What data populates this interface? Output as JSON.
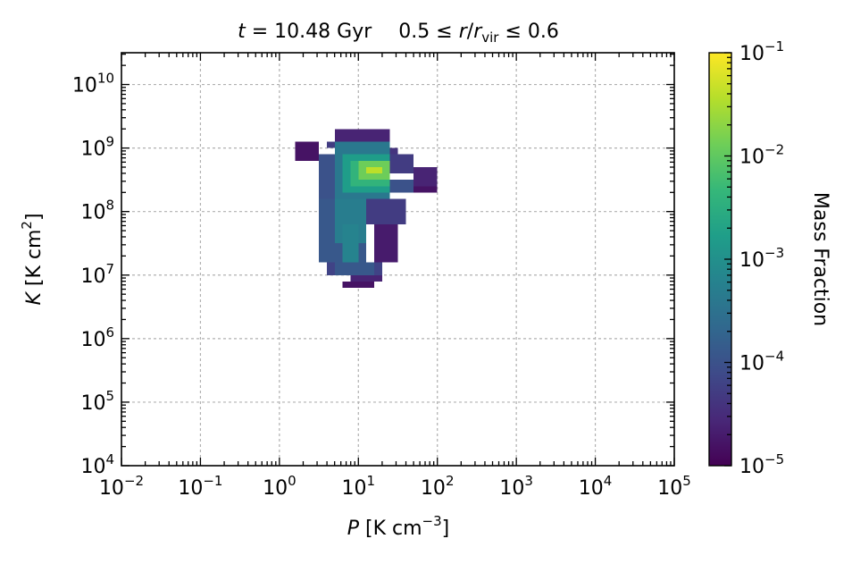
{
  "chart_data": {
    "type": "heatmap",
    "title": "t = 10.48 Gyr    0.5 ≤ r/r_vir ≤ 0.6",
    "title_parts": {
      "time_var": "t",
      "time_value": " = 10.48 ",
      "time_unit": "Gyr",
      "radius_range_lo": "0.5 ≤ ",
      "radius_var": "r",
      "radius_slash": "/",
      "radius_sub": "vir",
      "radius_range_hi": " ≤ 0.6"
    },
    "xlabel": "P [K cm⁻³]",
    "xlabel_parts": {
      "var": "P",
      "unit": " [K cm",
      "sup": "−3",
      "close": "]"
    },
    "ylabel": "K [K cm²]",
    "ylabel_parts": {
      "var": "K",
      "unit": " [K cm",
      "sup": "2",
      "close": "]"
    },
    "x_scale": "log",
    "y_scale": "log",
    "xlim_log10": [
      -2,
      5
    ],
    "ylim_log10": [
      4,
      10.5
    ],
    "x_ticks_log10": [
      -2,
      -1,
      0,
      1,
      2,
      3,
      4,
      5
    ],
    "y_ticks_log10": [
      4,
      5,
      6,
      7,
      8,
      9,
      10
    ],
    "tick_base": "10",
    "grid": true,
    "colormap": "viridis",
    "colorbar": {
      "label": "Mass Fraction",
      "scale": "log",
      "range_log10": [
        -5,
        -1
      ],
      "ticks_log10": [
        -5,
        -4,
        -3,
        -2,
        -1
      ],
      "colors": [
        "#440154",
        "#482878",
        "#3e4a89",
        "#31688e",
        "#26828e",
        "#1f9e89",
        "#35b779",
        "#6ece58",
        "#b5de2b",
        "#fde725"
      ]
    },
    "bin_size_log10": 0.1,
    "value_unit": "log10 mass fraction",
    "bins": [
      {
        "x": [
          0.6,
          1.4
        ],
        "y": [
          9.0,
          9.1
        ],
        "v": -4.3
      },
      {
        "x": [
          0.7,
          1.4
        ],
        "y": [
          9.1,
          9.3
        ],
        "v": -4.6
      },
      {
        "x": [
          0.2,
          0.5
        ],
        "y": [
          8.8,
          9.1
        ],
        "v": -4.8
      },
      {
        "x": [
          1.2,
          1.5
        ],
        "y": [
          8.9,
          9.0
        ],
        "v": -4.4
      },
      {
        "x": [
          1.4,
          1.7
        ],
        "y": [
          8.6,
          8.9
        ],
        "v": -4.3
      },
      {
        "x": [
          1.7,
          2.0
        ],
        "y": [
          8.4,
          8.7
        ],
        "v": -4.6
      },
      {
        "x": [
          1.7,
          2.0
        ],
        "y": [
          8.3,
          8.4
        ],
        "v": -4.8
      },
      {
        "x": [
          0.5,
          0.7
        ],
        "y": [
          8.2,
          8.9
        ],
        "v": -4.0
      },
      {
        "x": [
          1.0,
          1.7
        ],
        "y": [
          8.3,
          8.5
        ],
        "v": -4.0
      },
      {
        "x": [
          0.7,
          1.4
        ],
        "y": [
          8.2,
          9.1
        ],
        "v": -3.4
      },
      {
        "x": [
          0.8,
          1.4
        ],
        "y": [
          8.3,
          8.9
        ],
        "v": -2.8
      },
      {
        "x": [
          0.9,
          1.4
        ],
        "y": [
          8.4,
          8.8
        ],
        "v": -2.4
      },
      {
        "x": [
          1.0,
          1.4
        ],
        "y": [
          8.5,
          8.8
        ],
        "v": -1.9
      },
      {
        "x": [
          1.1,
          1.3
        ],
        "y": [
          8.6,
          8.7
        ],
        "v": -1.4
      },
      {
        "x": [
          0.5,
          1.1
        ],
        "y": [
          7.2,
          8.2
        ],
        "v": -3.9
      },
      {
        "x": [
          0.7,
          1.1
        ],
        "y": [
          7.5,
          8.2
        ],
        "v": -3.3
      },
      {
        "x": [
          1.1,
          1.6
        ],
        "y": [
          7.8,
          8.2
        ],
        "v": -4.3
      },
      {
        "x": [
          1.2,
          1.5
        ],
        "y": [
          7.2,
          7.8
        ],
        "v": -4.7
      },
      {
        "x": [
          0.5,
          0.6
        ],
        "y": [
          7.8,
          8.1
        ],
        "v": -4.8
      },
      {
        "x": [
          0.6,
          1.3
        ],
        "y": [
          7.0,
          7.2
        ],
        "v": -4.2
      },
      {
        "x": [
          0.7,
          1.2
        ],
        "y": [
          7.0,
          7.2
        ],
        "v": -3.9
      },
      {
        "x": [
          0.8,
          1.0
        ],
        "y": [
          7.2,
          7.8
        ],
        "v": -3.2
      },
      {
        "x": [
          0.8,
          1.0
        ],
        "y": [
          7.0,
          7.2
        ],
        "v": -4.4
      },
      {
        "x": [
          0.9,
          1.3
        ],
        "y": [
          6.9,
          7.0
        ],
        "v": -4.6
      },
      {
        "x": [
          0.8,
          1.2
        ],
        "y": [
          6.8,
          6.9
        ],
        "v": -4.8
      }
    ]
  }
}
